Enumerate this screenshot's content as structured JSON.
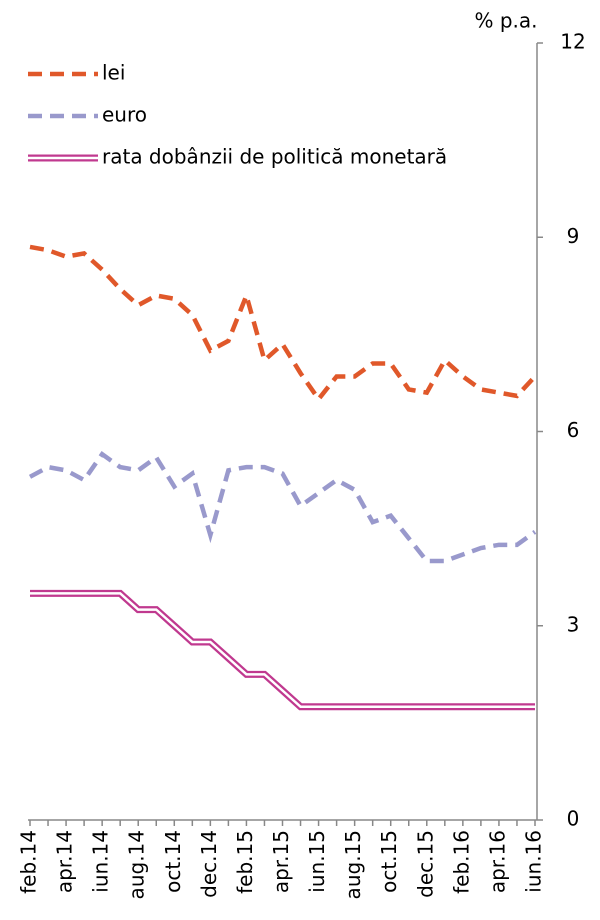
{
  "chart_data": {
    "type": "line",
    "y_label": "% p.a.",
    "categories": [
      "feb.14",
      null,
      "apr.14",
      null,
      "iun.14",
      null,
      "aug.14",
      null,
      "oct.14",
      null,
      "dec.14",
      null,
      "feb.15",
      null,
      "apr.15",
      null,
      "iun.15",
      null,
      "aug.15",
      null,
      "oct.15",
      null,
      "dec.15",
      null,
      "feb.16",
      null,
      "apr.16",
      null,
      "iun.16"
    ],
    "series": [
      {
        "name": "lei",
        "color": "#e0582a",
        "style": "dashed",
        "values": [
          8.85,
          8.8,
          8.7,
          8.75,
          8.5,
          8.2,
          7.95,
          8.1,
          8.05,
          7.8,
          7.25,
          7.4,
          8.1,
          7.1,
          7.35,
          6.9,
          6.5,
          6.85,
          6.85,
          7.05,
          7.05,
          6.65,
          6.6,
          7.1,
          6.85,
          6.65,
          6.6,
          6.55,
          6.85
        ]
      },
      {
        "name": "euro",
        "color": "#9999cc",
        "style": "dashed",
        "values": [
          5.3,
          5.45,
          5.4,
          5.25,
          5.65,
          5.45,
          5.4,
          5.6,
          5.15,
          5.35,
          4.4,
          5.4,
          5.45,
          5.45,
          5.35,
          4.85,
          5.05,
          5.25,
          5.1,
          4.6,
          4.7,
          4.35,
          4.0,
          4.0,
          4.1,
          4.2,
          4.25,
          4.25,
          4.45
        ]
      },
      {
        "name": "rata dobânzii de politică monetară",
        "color": "#c0398f",
        "style": "double",
        "values": [
          3.5,
          3.5,
          3.5,
          3.5,
          3.5,
          3.5,
          3.25,
          3.25,
          3.0,
          2.75,
          2.75,
          2.5,
          2.25,
          2.25,
          2.0,
          1.75,
          1.75,
          1.75,
          1.75,
          1.75,
          1.75,
          1.75,
          1.75,
          1.75,
          1.75,
          1.75,
          1.75,
          1.75,
          1.75
        ]
      }
    ],
    "ylim": [
      0,
      12
    ],
    "yticks": [
      0,
      3,
      6,
      9,
      12
    ],
    "y_axis_side": "right",
    "legend": "upper left",
    "grid": false
  }
}
